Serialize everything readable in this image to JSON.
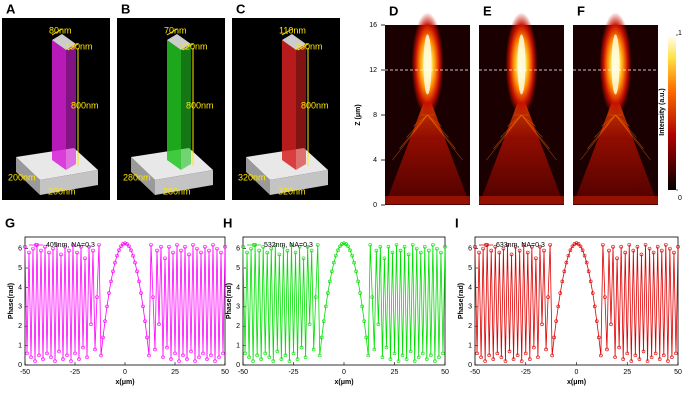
{
  "schematics": [
    {
      "panel": "A",
      "color": "#d81fd8",
      "dims": [
        "80nm",
        "130nm",
        "800nm",
        "200nm",
        "200nm"
      ]
    },
    {
      "panel": "B",
      "color": "#22c422",
      "dims": [
        "70nm",
        "220nm",
        "800nm",
        "280nm",
        "280nm"
      ]
    },
    {
      "panel": "C",
      "color": "#d82020",
      "dims": [
        "110nm",
        "280nm",
        "800nm",
        "320nm",
        "320nm"
      ]
    }
  ],
  "chart_data": [
    {
      "type": "heatmap",
      "panels": [
        "D",
        "E",
        "F"
      ],
      "ylabel": "Z (μm)",
      "ylim": [
        0,
        16
      ],
      "yticks": [
        0,
        4,
        8,
        12,
        16
      ],
      "annotation_y": 12,
      "colorbar_label": "Intensity (a.u.)",
      "clim": [
        0,
        1
      ],
      "cticks": [
        0,
        1
      ]
    },
    {
      "type": "line",
      "panel": "G",
      "xlabel": "x(μm)",
      "ylabel": "Phase(rad)",
      "xlim": [
        -50,
        50
      ],
      "ylim": [
        0,
        6.6
      ],
      "xticks": [
        -50,
        -25,
        0,
        25,
        50
      ],
      "yticks": [
        0,
        1,
        2,
        3,
        4,
        5,
        6
      ],
      "x": [
        -50,
        -49,
        -48,
        -47,
        -46,
        -45,
        -44,
        -43,
        -42,
        -41,
        -40,
        -39,
        -38,
        -37,
        -36,
        -35,
        -34,
        -33,
        -32,
        -31,
        -30,
        -29,
        -28,
        -27,
        -26,
        -25,
        -24,
        -23,
        -22,
        -21,
        -20,
        -19,
        -18,
        -17,
        -16,
        -15,
        -14,
        -13,
        -12,
        -11,
        -10,
        -9,
        -8,
        -7,
        -6,
        -5,
        -4,
        -3,
        -2,
        -1,
        0,
        1,
        2,
        3,
        4,
        5,
        6,
        7,
        8,
        9,
        10,
        11,
        12,
        13,
        14,
        15,
        16,
        17,
        18,
        19,
        20,
        21,
        22,
        23,
        24,
        25,
        26,
        27,
        28,
        29,
        30,
        31,
        32,
        33,
        34,
        35,
        36,
        37,
        38,
        39,
        40,
        41,
        42,
        43,
        44,
        45,
        46,
        47,
        48,
        49,
        50
      ],
      "series": [
        {
          "name": "405nm, NA=0.3",
          "color": "#ff00ff",
          "values": [
            6.1,
            0.6,
            5.8,
            0.4,
            6.0,
            0.2,
            6.2,
            0.5,
            5.9,
            0.3,
            6.1,
            0.6,
            5.8,
            0.4,
            6.0,
            0.2,
            6.2,
            0.7,
            5.7,
            0.3,
            6.1,
            0.5,
            5.9,
            0.2,
            6.2,
            0.6,
            5.8,
            0.3,
            6.1,
            0.9,
            5.5,
            0.4,
            6.1,
            2.1,
            5.9,
            0.8,
            3.5,
            6.2,
            0.49,
            1.42,
            2.26,
            3.02,
            3.71,
            4.31,
            4.83,
            5.28,
            5.64,
            5.92,
            6.12,
            6.24,
            6.28,
            6.24,
            6.12,
            5.92,
            5.64,
            5.28,
            4.83,
            4.31,
            3.71,
            3.02,
            2.26,
            1.42,
            0.49,
            6.2,
            3.5,
            0.8,
            5.9,
            2.1,
            6.1,
            0.4,
            5.5,
            0.9,
            6.1,
            0.3,
            5.8,
            0.6,
            6.2,
            0.2,
            5.9,
            0.5,
            6.1,
            0.3,
            5.7,
            0.7,
            6.2,
            0.2,
            6.0,
            0.4,
            5.8,
            0.6,
            6.1,
            0.3,
            5.9,
            0.5,
            6.2,
            0.2,
            6.0,
            0.4,
            5.8,
            0.6,
            6.1
          ]
        }
      ]
    },
    {
      "type": "line",
      "panel": "H",
      "xlabel": "x(μm)",
      "ylabel": "Phase(rad)",
      "xlim": [
        -50,
        50
      ],
      "ylim": [
        0,
        6.6
      ],
      "xticks": [
        -50,
        -25,
        0,
        25,
        50
      ],
      "yticks": [
        0,
        1,
        2,
        3,
        4,
        5,
        6
      ],
      "x": [
        -50,
        -49,
        -48,
        -47,
        -46,
        -45,
        -44,
        -43,
        -42,
        -41,
        -40,
        -39,
        -38,
        -37,
        -36,
        -35,
        -34,
        -33,
        -32,
        -31,
        -30,
        -29,
        -28,
        -27,
        -26,
        -25,
        -24,
        -23,
        -22,
        -21,
        -20,
        -19,
        -18,
        -17,
        -16,
        -15,
        -14,
        -13,
        -12,
        -11,
        -10,
        -9,
        -8,
        -7,
        -6,
        -5,
        -4,
        -3,
        -2,
        -1,
        0,
        1,
        2,
        3,
        4,
        5,
        6,
        7,
        8,
        9,
        10,
        11,
        12,
        13,
        14,
        15,
        16,
        17,
        18,
        19,
        20,
        21,
        22,
        23,
        24,
        25,
        26,
        27,
        28,
        29,
        30,
        31,
        32,
        33,
        34,
        35,
        36,
        37,
        38,
        39,
        40,
        41,
        42,
        43,
        44,
        45,
        46,
        47,
        48,
        49,
        50
      ],
      "series": [
        {
          "name": "532nm, NA=0.3",
          "color": "#00e000",
          "values": [
            6.1,
            0.6,
            5.8,
            0.4,
            6.0,
            0.2,
            6.2,
            0.5,
            5.9,
            0.3,
            6.1,
            0.6,
            5.8,
            0.4,
            6.0,
            0.2,
            6.2,
            0.7,
            5.7,
            0.3,
            6.1,
            0.5,
            5.9,
            0.2,
            6.2,
            0.6,
            5.8,
            0.3,
            6.1,
            0.9,
            5.5,
            0.4,
            6.1,
            2.1,
            5.9,
            0.8,
            3.5,
            6.2,
            0.49,
            1.42,
            2.26,
            3.02,
            3.71,
            4.31,
            4.83,
            5.28,
            5.64,
            5.92,
            6.12,
            6.24,
            6.28,
            6.24,
            6.12,
            5.92,
            5.64,
            5.28,
            4.83,
            4.31,
            3.71,
            3.02,
            2.26,
            1.42,
            0.49,
            6.2,
            3.5,
            0.8,
            5.9,
            2.1,
            6.1,
            0.4,
            5.5,
            0.9,
            6.1,
            0.3,
            5.8,
            0.6,
            6.2,
            0.2,
            5.9,
            0.5,
            6.1,
            0.3,
            5.7,
            0.7,
            6.2,
            0.2,
            6.0,
            0.4,
            5.8,
            0.6,
            6.1,
            0.3,
            5.9,
            0.5,
            6.2,
            0.2,
            6.0,
            0.4,
            5.8,
            0.6,
            6.1
          ]
        }
      ]
    },
    {
      "type": "line",
      "panel": "I",
      "xlabel": "x(μm)",
      "ylabel": "Phase(rad)",
      "xlim": [
        -50,
        50
      ],
      "ylim": [
        0,
        6.6
      ],
      "xticks": [
        -50,
        -25,
        0,
        25,
        50
      ],
      "yticks": [
        0,
        1,
        2,
        3,
        4,
        5,
        6
      ],
      "x": [
        -50,
        -49,
        -48,
        -47,
        -46,
        -45,
        -44,
        -43,
        -42,
        -41,
        -40,
        -39,
        -38,
        -37,
        -36,
        -35,
        -34,
        -33,
        -32,
        -31,
        -30,
        -29,
        -28,
        -27,
        -26,
        -25,
        -24,
        -23,
        -22,
        -21,
        -20,
        -19,
        -18,
        -17,
        -16,
        -15,
        -14,
        -13,
        -12,
        -11,
        -10,
        -9,
        -8,
        -7,
        -6,
        -5,
        -4,
        -3,
        -2,
        -1,
        0,
        1,
        2,
        3,
        4,
        5,
        6,
        7,
        8,
        9,
        10,
        11,
        12,
        13,
        14,
        15,
        16,
        17,
        18,
        19,
        20,
        21,
        22,
        23,
        24,
        25,
        26,
        27,
        28,
        29,
        30,
        31,
        32,
        33,
        34,
        35,
        36,
        37,
        38,
        39,
        40,
        41,
        42,
        43,
        44,
        45,
        46,
        47,
        48,
        49,
        50
      ],
      "series": [
        {
          "name": "633nm, NA=0.3",
          "color": "#e00000",
          "values": [
            6.1,
            0.6,
            5.8,
            0.4,
            6.0,
            0.2,
            6.2,
            0.5,
            5.9,
            0.3,
            6.1,
            0.6,
            5.8,
            0.4,
            6.0,
            0.2,
            6.2,
            0.7,
            5.7,
            0.3,
            6.1,
            0.5,
            5.9,
            0.2,
            6.2,
            0.6,
            5.8,
            0.3,
            6.1,
            0.9,
            5.5,
            0.4,
            6.1,
            2.1,
            5.9,
            0.8,
            3.5,
            6.2,
            0.49,
            1.42,
            2.26,
            3.02,
            3.71,
            4.31,
            4.83,
            5.28,
            5.64,
            5.92,
            6.12,
            6.24,
            6.28,
            6.24,
            6.12,
            5.92,
            5.64,
            5.28,
            4.83,
            4.31,
            3.71,
            3.02,
            2.26,
            1.42,
            0.49,
            6.2,
            3.5,
            0.8,
            5.9,
            2.1,
            6.1,
            0.4,
            5.5,
            0.9,
            6.1,
            0.3,
            5.8,
            0.6,
            6.2,
            0.2,
            5.9,
            0.5,
            6.1,
            0.3,
            5.7,
            0.7,
            6.2,
            0.2,
            6.0,
            0.4,
            5.8,
            0.6,
            6.1,
            0.3,
            5.9,
            0.5,
            6.2,
            0.2,
            6.0,
            0.4,
            5.8,
            0.6,
            6.1
          ]
        }
      ]
    }
  ]
}
